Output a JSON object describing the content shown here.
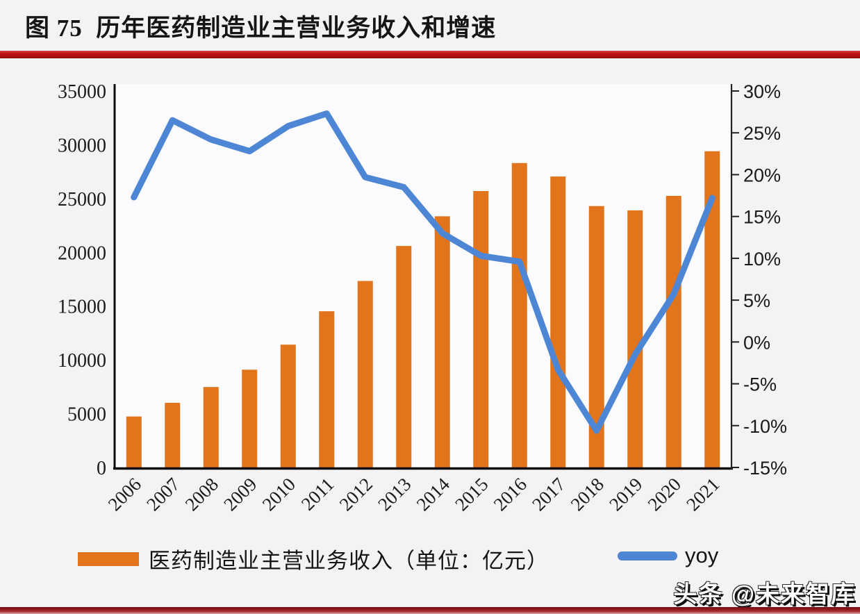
{
  "figure": {
    "title": "图 75  历年医药制造业主营业务收入和增速",
    "watermark": "头条 @未来智库"
  },
  "chart_data": {
    "type": "bar+line combo (dual axis)",
    "categories": [
      "2006",
      "2007",
      "2008",
      "2009",
      "2010",
      "2011",
      "2012",
      "2013",
      "2014",
      "2015",
      "2016",
      "2017",
      "2018",
      "2019",
      "2020",
      "2021"
    ],
    "series": [
      {
        "name": "医药制造业主营业务收入（单位：亿元）",
        "type": "bar",
        "axis": "left",
        "color": "#E2751C",
        "values": [
          4737,
          6011,
          7478,
          9087,
          11417,
          14522,
          17337,
          20593,
          23350,
          25700,
          28300,
          27050,
          24300,
          23900,
          25250,
          29400
        ]
      },
      {
        "name": "yoy",
        "type": "line",
        "axis": "right",
        "unit": "%",
        "color": "#4C86D4",
        "values": [
          17.3,
          26.5,
          24.2,
          22.8,
          25.8,
          27.3,
          19.7,
          18.5,
          13.0,
          10.3,
          9.6,
          -3.3,
          -10.6,
          -1.5,
          5.7,
          17.2
        ]
      }
    ],
    "left_axis": {
      "min": 0,
      "max": 35000,
      "step": 5000,
      "tick_labels": [
        "0",
        "5000",
        "10000",
        "15000",
        "20000",
        "25000",
        "30000",
        "35000"
      ]
    },
    "right_axis": {
      "min": -15,
      "max": 30,
      "step": 5,
      "tick_labels": [
        "30%",
        "25%",
        "20%",
        "15%",
        "10%",
        "5%",
        "0%",
        "-5%",
        "-10%",
        "-15%"
      ]
    },
    "legend_position": "bottom",
    "grid": false
  },
  "colors": {
    "bar_orange": "#E2751C",
    "line_blue": "#4C86D4",
    "title_rule_red": "#C31414",
    "bottom_rule_red": "#8C151C",
    "axis_black": "#0D0D0D",
    "page_background": "#F3F3F5"
  }
}
